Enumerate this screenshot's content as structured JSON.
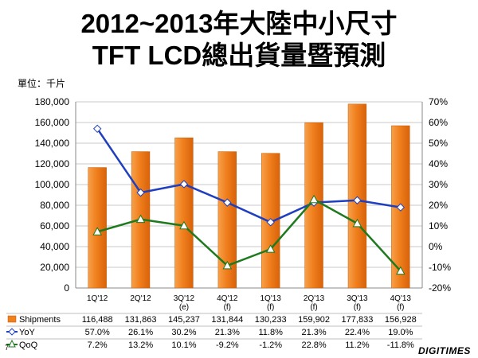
{
  "page": {
    "title_line1": "2012~2013年大陸中小尺寸",
    "title_line2": "TFT LCD總出貨量暨預測",
    "unit": "單位：千片",
    "page_number": "7",
    "logo": "DIGITIMES"
  },
  "colors": {
    "bar": "#f07f1d",
    "bar_edge": "#c05a05",
    "yoy": "#1f3fbf",
    "qoq": "#1e7a1e"
  },
  "chart_data": {
    "type": "bar",
    "categories": [
      {
        "line1": "1Q'12",
        "line2": ""
      },
      {
        "line1": "2Q'12",
        "line2": ""
      },
      {
        "line1": "3Q'12",
        "line2": "(e)"
      },
      {
        "line1": "4Q'12",
        "line2": "(f)"
      },
      {
        "line1": "1Q'13",
        "line2": "(f)"
      },
      {
        "line1": "2Q'13",
        "line2": "(f)"
      },
      {
        "line1": "3Q'13",
        "line2": "(f)"
      },
      {
        "line1": "4Q'13",
        "line2": "(f)"
      }
    ],
    "left_axis": {
      "min": 0,
      "max": 180000,
      "step": 20000,
      "ticks": [
        "0",
        "20,000",
        "40,000",
        "60,000",
        "80,000",
        "100,000",
        "120,000",
        "140,000",
        "160,000",
        "180,000"
      ]
    },
    "right_axis": {
      "min": -20,
      "max": 70,
      "step": 10,
      "ticks": [
        "-20%",
        "-10%",
        "0%",
        "10%",
        "20%",
        "30%",
        "40%",
        "50%",
        "60%",
        "70%"
      ]
    },
    "series": [
      {
        "name": "Shipments",
        "type": "bar",
        "axis": "left",
        "values": [
          116488,
          131863,
          145237,
          131844,
          130233,
          159902,
          177833,
          156928
        ],
        "labels": [
          "116,488",
          "131,863",
          "145,237",
          "131,844",
          "130,233",
          "159,902",
          "177,833",
          "156,928"
        ]
      },
      {
        "name": "YoY",
        "type": "line",
        "axis": "right",
        "values": [
          57.0,
          26.1,
          30.2,
          21.3,
          11.8,
          21.3,
          22.4,
          19.0
        ],
        "labels": [
          "57.0%",
          "26.1%",
          "30.2%",
          "21.3%",
          "11.8%",
          "21.3%",
          "22.4%",
          "19.0%"
        ]
      },
      {
        "name": "QoQ",
        "type": "line",
        "axis": "right",
        "values": [
          7.2,
          13.2,
          10.1,
          -9.2,
          -1.2,
          22.8,
          11.2,
          -11.8
        ],
        "labels": [
          "7.2%",
          "13.2%",
          "10.1%",
          "-9.2%",
          "-1.2%",
          "22.8%",
          "11.2%",
          "-11.8%"
        ]
      }
    ]
  }
}
